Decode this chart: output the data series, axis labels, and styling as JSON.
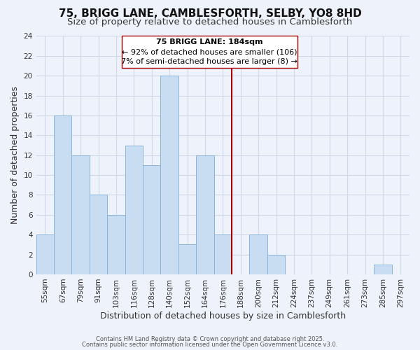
{
  "title": "75, BRIGG LANE, CAMBLESFORTH, SELBY, YO8 8HD",
  "subtitle": "Size of property relative to detached houses in Camblesforth",
  "xlabel": "Distribution of detached houses by size in Camblesforth",
  "ylabel": "Number of detached properties",
  "bar_labels": [
    "55sqm",
    "67sqm",
    "79sqm",
    "91sqm",
    "103sqm",
    "116sqm",
    "128sqm",
    "140sqm",
    "152sqm",
    "164sqm",
    "176sqm",
    "188sqm",
    "200sqm",
    "212sqm",
    "224sqm",
    "237sqm",
    "249sqm",
    "261sqm",
    "273sqm",
    "285sqm",
    "297sqm"
  ],
  "bar_values": [
    4,
    16,
    12,
    8,
    6,
    13,
    11,
    20,
    3,
    12,
    4,
    0,
    4,
    2,
    0,
    0,
    0,
    0,
    0,
    1,
    0
  ],
  "bar_color": "#c9ddf2",
  "bar_edge_color": "#8ab4d8",
  "background_color": "#eef2fb",
  "grid_color": "#d0d8e8",
  "ylim": [
    0,
    24
  ],
  "yticks": [
    0,
    2,
    4,
    6,
    8,
    10,
    12,
    14,
    16,
    18,
    20,
    22,
    24
  ],
  "vline_color": "#aa0000",
  "annotation_title": "75 BRIGG LANE: 184sqm",
  "annotation_line1": "← 92% of detached houses are smaller (106)",
  "annotation_line2": "7% of semi-detached houses are larger (8) →",
  "footer1": "Contains HM Land Registry data © Crown copyright and database right 2025.",
  "footer2": "Contains public sector information licensed under the Open Government Licence v3.0.",
  "title_fontsize": 11,
  "subtitle_fontsize": 9.5,
  "axis_label_fontsize": 9,
  "tick_fontsize": 7.5,
  "annotation_fontsize": 8
}
